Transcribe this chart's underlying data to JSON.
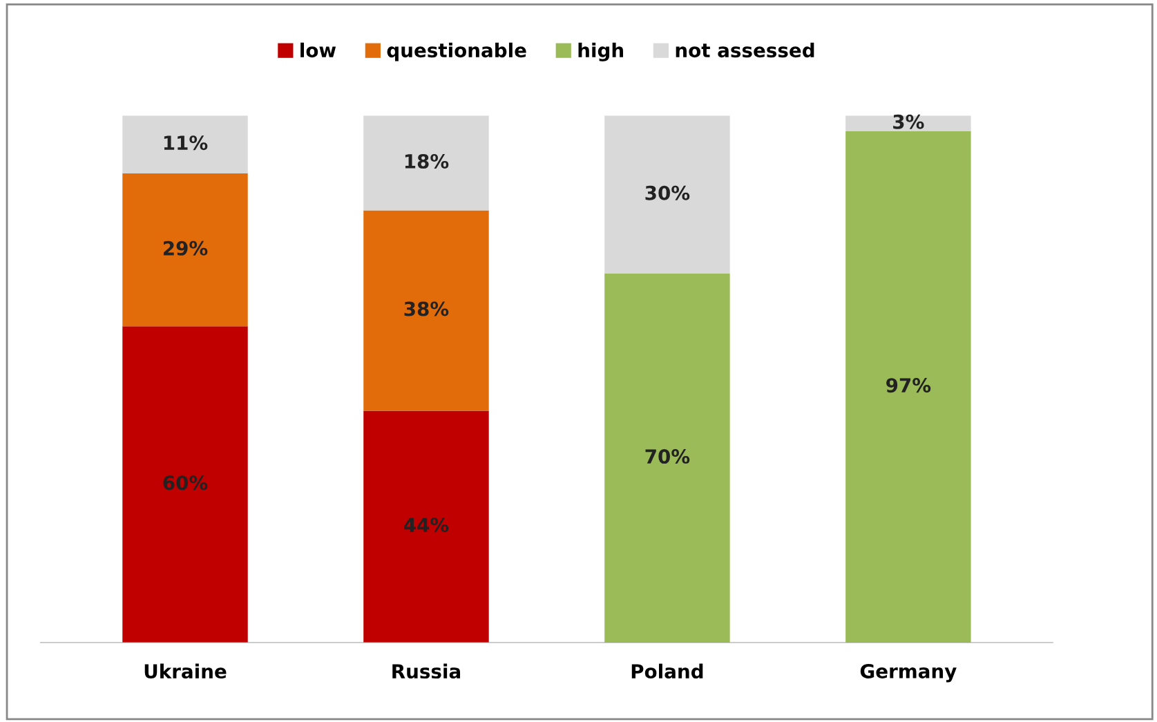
{
  "chart_data": {
    "type": "bar",
    "stacked": true,
    "categories": [
      "Ukraine",
      "Russia",
      "Poland",
      "Germany"
    ],
    "series": [
      {
        "name": "low",
        "color": "#c00000",
        "values": [
          60,
          44,
          0,
          0
        ],
        "value_labels": [
          "60%",
          "44%",
          null,
          null
        ]
      },
      {
        "name": "questionable",
        "color": "#e36c0a",
        "values": [
          29,
          38,
          0,
          0
        ],
        "value_labels": [
          "29%",
          "38%",
          null,
          null
        ]
      },
      {
        "name": "high",
        "color": "#9bbb59",
        "values": [
          0,
          0,
          70,
          97
        ],
        "value_labels": [
          null,
          null,
          "70%",
          "97%"
        ]
      },
      {
        "name": "not assessed",
        "color": "#d9d9d9",
        "values": [
          11,
          18,
          30,
          3
        ],
        "value_labels": [
          "11%",
          "18%",
          "30%",
          "3%"
        ]
      }
    ],
    "ylim": [
      0,
      100
    ],
    "tick_labels": "x",
    "legend": "top",
    "grid": false
  }
}
